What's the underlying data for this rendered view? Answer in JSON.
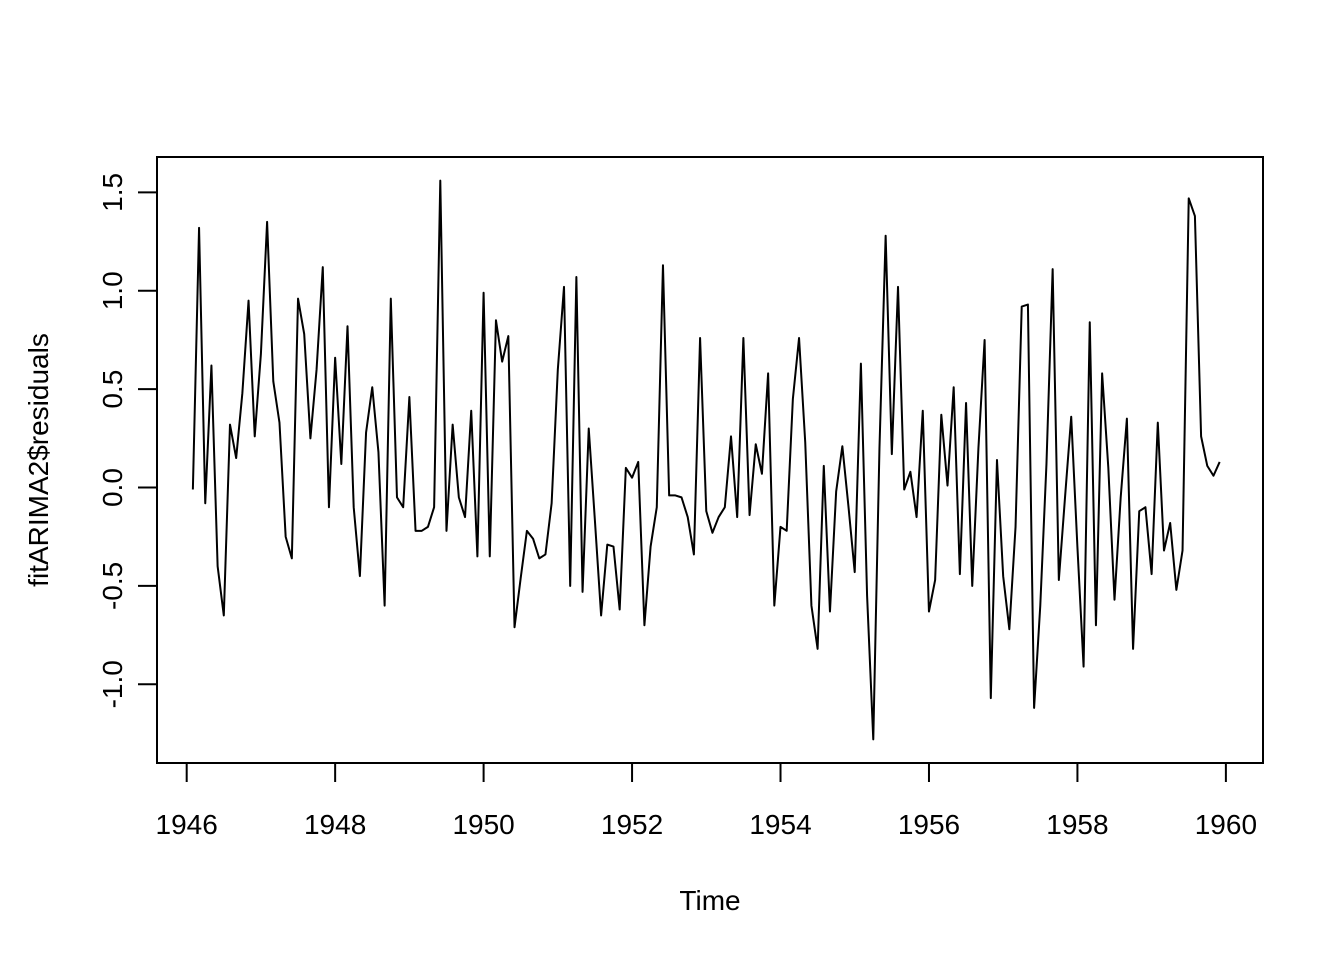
{
  "chart_data": {
    "type": "line",
    "title": "",
    "xlabel": "Time",
    "ylabel": "fitARIMA2$residuals",
    "xlim": [
      1945.6,
      1960.5
    ],
    "ylim": [
      -1.4,
      1.68
    ],
    "x_ticks": [
      1946,
      1948,
      1950,
      1952,
      1954,
      1956,
      1958,
      1960
    ],
    "x_tick_labels": [
      "1946",
      "1948",
      "1950",
      "1952",
      "1954",
      "1956",
      "1958",
      "1960"
    ],
    "y_ticks": [
      -1.0,
      -0.5,
      0.0,
      0.5,
      1.0,
      1.5
    ],
    "y_tick_labels": [
      "-1.0",
      "-0.5",
      "0.0",
      "0.5",
      "1.0",
      "1.5"
    ],
    "grid": false,
    "legend": "none",
    "line_color": "#000000",
    "x_start": 1946.0833,
    "x_step": 0.08333,
    "values": [
      -0.01,
      1.32,
      -0.08,
      0.62,
      -0.4,
      -0.65,
      0.32,
      0.15,
      0.48,
      0.95,
      0.26,
      0.68,
      1.35,
      0.54,
      0.33,
      -0.25,
      -0.36,
      0.96,
      0.78,
      0.25,
      0.6,
      1.12,
      -0.1,
      0.66,
      0.12,
      0.82,
      -0.1,
      -0.45,
      0.28,
      0.51,
      0.18,
      -0.6,
      0.96,
      -0.05,
      -0.1,
      0.46,
      -0.22,
      -0.22,
      -0.2,
      -0.1,
      1.56,
      -0.22,
      0.32,
      -0.05,
      -0.15,
      0.39,
      -0.35,
      0.99,
      -0.35,
      0.85,
      0.64,
      0.77,
      -0.71,
      -0.46,
      -0.22,
      -0.26,
      -0.36,
      -0.34,
      -0.08,
      0.6,
      1.02,
      -0.5,
      1.07,
      -0.53,
      0.3,
      -0.17,
      -0.65,
      -0.29,
      -0.3,
      -0.62,
      0.1,
      0.05,
      0.13,
      -0.7,
      -0.3,
      -0.1,
      1.13,
      -0.04,
      -0.04,
      -0.05,
      -0.15,
      -0.34,
      0.76,
      -0.12,
      -0.23,
      -0.15,
      -0.1,
      0.26,
      -0.15,
      0.76,
      -0.14,
      0.22,
      0.07,
      0.58,
      -0.6,
      -0.2,
      -0.22,
      0.45,
      0.76,
      0.23,
      -0.6,
      -0.82,
      0.11,
      -0.63,
      -0.02,
      0.21,
      -0.1,
      -0.43,
      0.63,
      -0.55,
      -1.28,
      0.2,
      1.28,
      0.17,
      1.02,
      -0.01,
      0.08,
      -0.15,
      0.39,
      -0.63,
      -0.47,
      0.37,
      0.01,
      0.51,
      -0.44,
      0.43,
      -0.5,
      0.2,
      0.75,
      -1.07,
      0.14,
      -0.45,
      -0.72,
      -0.2,
      0.92,
      0.93,
      -1.12,
      -0.6,
      0.12,
      1.11,
      -0.47,
      -0.05,
      0.36,
      -0.3,
      -0.91,
      0.84,
      -0.7,
      0.58,
      0.1,
      -0.57,
      -0.05,
      0.35,
      -0.82,
      -0.12,
      -0.1,
      -0.44,
      0.33,
      -0.32,
      -0.18,
      -0.52,
      -0.32,
      1.47,
      1.38,
      0.26,
      0.11,
      0.06,
      0.13
    ]
  }
}
